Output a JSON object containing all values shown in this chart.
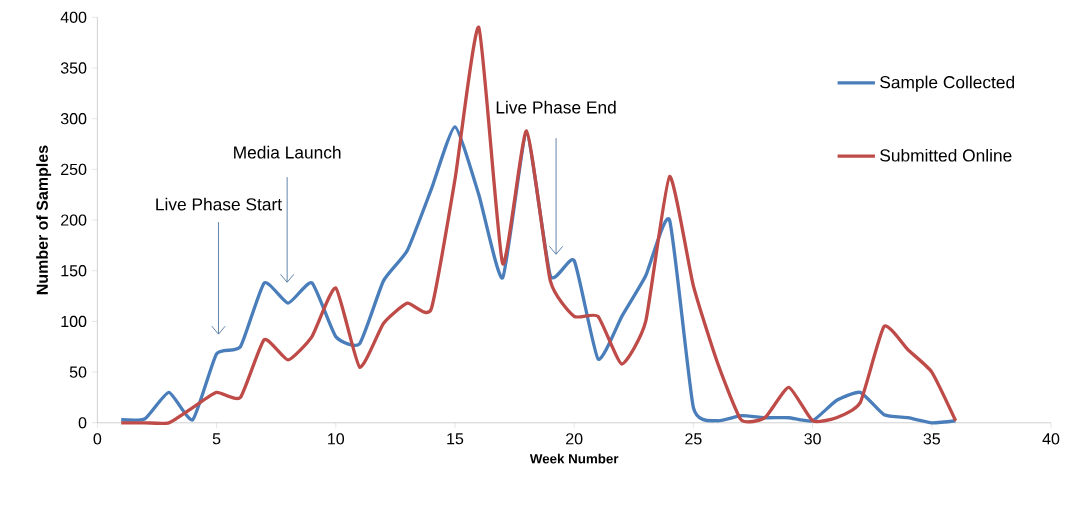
{
  "chart_data": {
    "type": "line",
    "xlabel": "Week Number",
    "ylabel": "Number of Samples",
    "x": [
      1,
      2,
      3,
      4,
      5,
      6,
      7,
      8,
      9,
      10,
      11,
      12,
      13,
      14,
      15,
      16,
      17,
      18,
      19,
      20,
      21,
      22,
      23,
      24,
      25,
      26,
      27,
      28,
      29,
      30,
      31,
      32,
      33,
      34,
      35,
      36
    ],
    "series": [
      {
        "name": "Sample Collected",
        "color": "#4a7ebb",
        "values": [
          3,
          4,
          30,
          3,
          68,
          75,
          138,
          118,
          138,
          85,
          78,
          140,
          170,
          230,
          292,
          225,
          143,
          285,
          145,
          160,
          63,
          105,
          145,
          200,
          15,
          2,
          7,
          5,
          5,
          2,
          22,
          30,
          8,
          5,
          0,
          2
        ]
      },
      {
        "name": "Submitted Online",
        "color": "#be4b48",
        "values": [
          0,
          0,
          0,
          15,
          30,
          25,
          82,
          62,
          85,
          133,
          55,
          98,
          118,
          112,
          240,
          390,
          157,
          288,
          140,
          105,
          105,
          58,
          100,
          243,
          135,
          60,
          3,
          5,
          35,
          2,
          5,
          20,
          95,
          72,
          50,
          2
        ]
      }
    ],
    "annotations": [
      "Live Phase Start",
      "Media Launch",
      "Live Phase End"
    ],
    "xlim": [
      0,
      40
    ],
    "xticks": [
      0,
      5,
      10,
      15,
      20,
      25,
      30,
      35,
      40
    ],
    "ylim": [
      0,
      400
    ],
    "yticks": [
      0,
      50,
      100,
      150,
      200,
      250,
      300,
      350,
      400
    ],
    "grid": false,
    "legend": "top right",
    "marker": "none",
    "line_style": "solid"
  }
}
